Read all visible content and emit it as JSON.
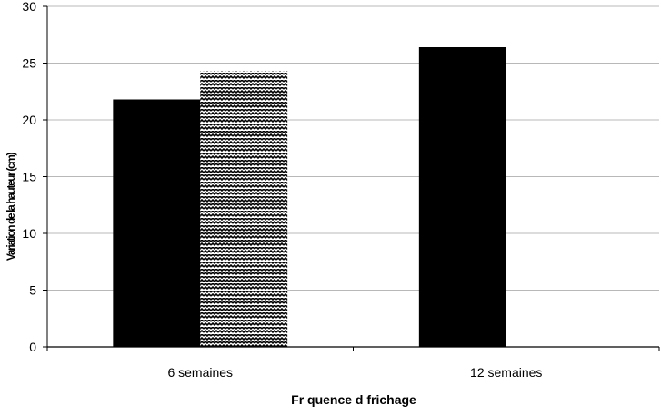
{
  "chart_data": {
    "type": "bar",
    "title": "",
    "xlabel": "Fr quence d frichage",
    "ylabel": "Variation de la hauteur (cm)",
    "ylim": [
      0,
      30
    ],
    "yticks": [
      0,
      5,
      10,
      15,
      20,
      25,
      30
    ],
    "grid": true,
    "legend": "none",
    "categories": [
      "6 semaines",
      "12 semaines"
    ],
    "series": [
      {
        "values": [
          21.8,
          26.4
        ],
        "fill": "solid",
        "color": "#000000"
      },
      {
        "values": [
          24.3,
          null
        ],
        "fill": "hatched",
        "color": "#000000"
      }
    ]
  }
}
